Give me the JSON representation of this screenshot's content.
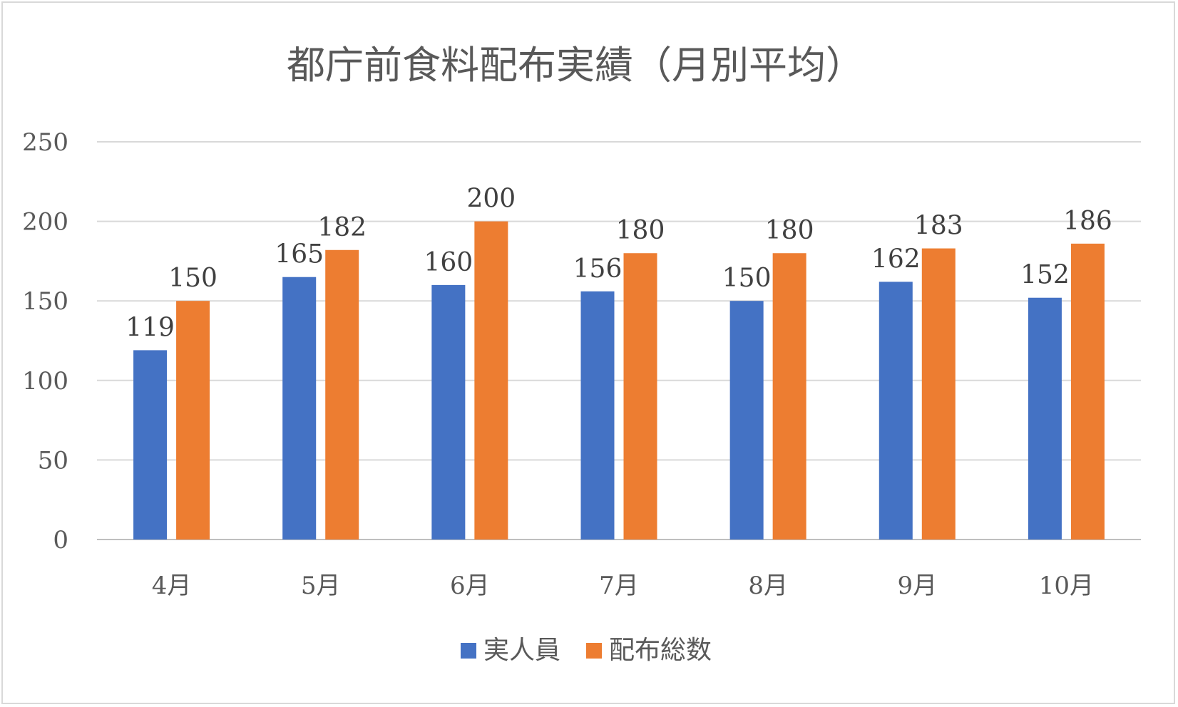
{
  "chart_data": {
    "type": "bar",
    "title": "都庁前食料配布実績（月別平均）",
    "categories": [
      "4月",
      "5月",
      "6月",
      "7月",
      "8月",
      "9月",
      "10月"
    ],
    "series": [
      {
        "name": "実人員",
        "color": "#4472c4",
        "values": [
          119,
          165,
          160,
          156,
          150,
          162,
          152
        ]
      },
      {
        "name": "配布総数",
        "color": "#ed7d31",
        "values": [
          150,
          182,
          200,
          180,
          180,
          183,
          186
        ]
      }
    ],
    "ylim": [
      0,
      250
    ],
    "yticks": [
      0,
      50,
      100,
      150,
      200,
      250
    ],
    "grid": true,
    "legend": "bottom",
    "data_labels": true
  }
}
